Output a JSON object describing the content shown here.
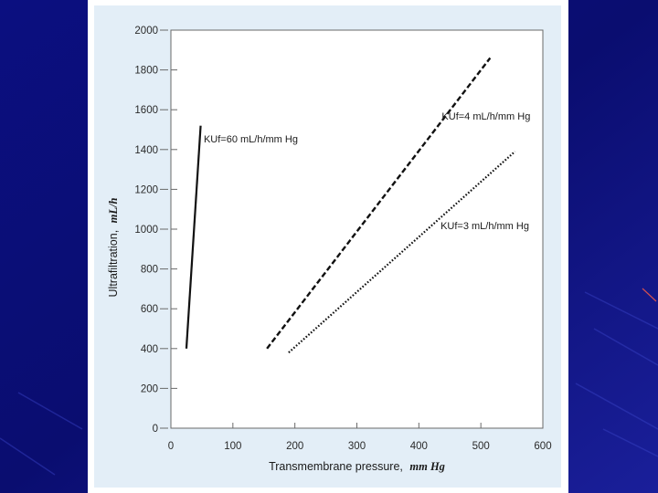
{
  "chart_data": {
    "type": "line",
    "xlabel": "Transmembrane pressure,",
    "xlabel_unit": "mm Hg",
    "ylabel": "Ultrafiltration,",
    "ylabel_unit": "mL/h",
    "xlim": [
      0,
      600
    ],
    "ylim": [
      0,
      2000
    ],
    "x_ticks": [
      0,
      100,
      200,
      300,
      400,
      500,
      600
    ],
    "y_ticks": [
      0,
      200,
      400,
      600,
      800,
      1000,
      1200,
      1400,
      1600,
      1800,
      2000
    ],
    "grid": false,
    "series": [
      {
        "name": "KUf=60 mL/h/mm Hg",
        "style": "solid",
        "x": [
          25,
          48
        ],
        "y": [
          400,
          1520
        ]
      },
      {
        "name": "KUf=4 mL/h/mm Hg",
        "style": "dashed",
        "x": [
          155,
          515
        ],
        "y": [
          400,
          1860
        ]
      },
      {
        "name": "KUf=3 mL/h/mm Hg",
        "style": "dotted",
        "x": [
          190,
          555
        ],
        "y": [
          380,
          1390
        ]
      }
    ],
    "annotations": [
      {
        "text": "KUf=60 mL/h/mm Hg",
        "x": 53,
        "y": 1435
      },
      {
        "text": "KUf=4 mL/h/mm Hg",
        "x": 437,
        "y": 1550
      },
      {
        "text": "KUf=3 mL/h/mm Hg",
        "x": 435,
        "y": 1000
      }
    ]
  },
  "colors": {
    "background": "#0a0e7a",
    "panel": "#ffffff",
    "frame": "#e3eef7",
    "plot": "#ffffff",
    "line": "#111111"
  }
}
